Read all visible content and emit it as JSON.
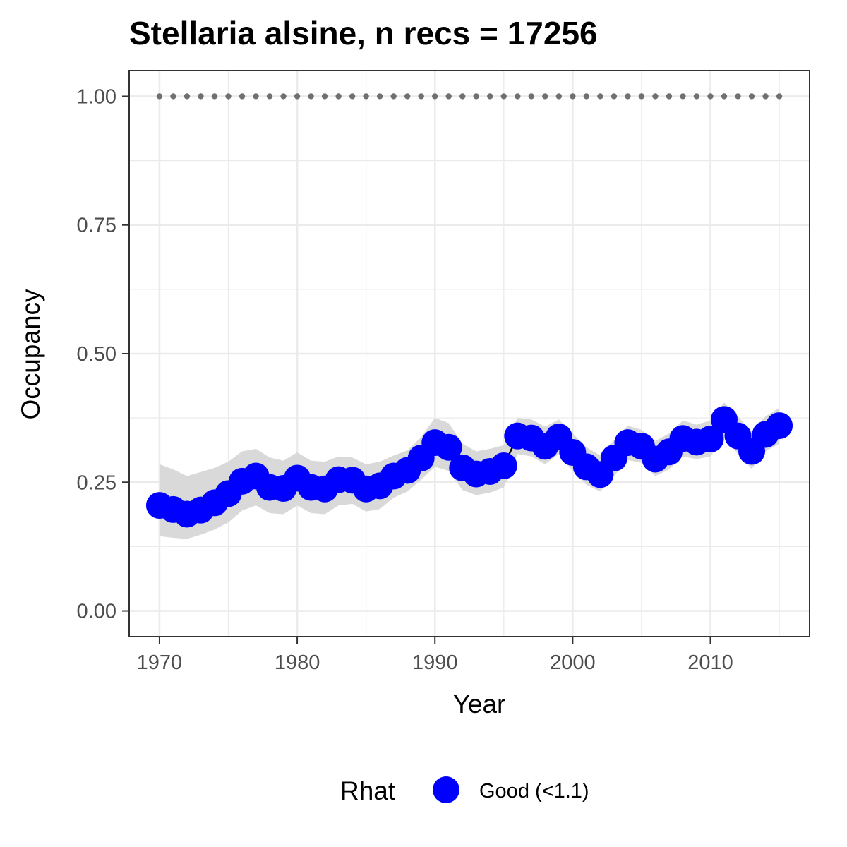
{
  "chart_data": {
    "type": "line",
    "title": "Stellaria alsine, n recs = 17256",
    "xlabel": "Year",
    "ylabel": "Occupancy",
    "xlim": [
      1967.8,
      2017.2
    ],
    "ylim": [
      -0.05,
      1.05
    ],
    "x_ticks": [
      1970,
      1980,
      1990,
      2000,
      2010
    ],
    "x_tick_labels": [
      "1970",
      "1980",
      "1990",
      "2000",
      "2010"
    ],
    "y_ticks": [
      0,
      0.25,
      0.5,
      0.75,
      1
    ],
    "y_tick_labels": [
      "0.00",
      "0.25",
      "0.50",
      "0.75",
      "1.00"
    ],
    "grid": true,
    "legend": {
      "title": "Rhat",
      "position": "bottom",
      "entries": [
        {
          "label": "Good (<1.1)",
          "color": "#0000ff"
        }
      ]
    },
    "colors": {
      "points": "#0000ff",
      "ribbon": "#d9d9d9",
      "reference": "#707070",
      "line": "#000000",
      "grid": "#ebebeb",
      "panel_border": "#333333"
    },
    "x": [
      1970,
      1971,
      1972,
      1973,
      1974,
      1975,
      1976,
      1977,
      1978,
      1979,
      1980,
      1981,
      1982,
      1983,
      1984,
      1985,
      1986,
      1987,
      1988,
      1989,
      1990,
      1991,
      1992,
      1993,
      1994,
      1995,
      1996,
      1997,
      1998,
      1999,
      2000,
      2001,
      2002,
      2003,
      2004,
      2005,
      2006,
      2007,
      2008,
      2009,
      2010,
      2011,
      2012,
      2013,
      2014,
      2015
    ],
    "series": [
      {
        "name": "Good (<1.1)",
        "values": [
          0.205,
          0.197,
          0.188,
          0.196,
          0.21,
          0.228,
          0.252,
          0.262,
          0.24,
          0.238,
          0.258,
          0.24,
          0.237,
          0.255,
          0.254,
          0.237,
          0.243,
          0.262,
          0.273,
          0.297,
          0.327,
          0.318,
          0.278,
          0.266,
          0.271,
          0.282,
          0.34,
          0.336,
          0.32,
          0.338,
          0.308,
          0.28,
          0.265,
          0.297,
          0.327,
          0.32,
          0.295,
          0.309,
          0.335,
          0.328,
          0.334,
          0.372,
          0.34,
          0.31,
          0.343,
          0.36
        ]
      }
    ],
    "ribbon": {
      "upper": [
        0.285,
        0.275,
        0.262,
        0.27,
        0.278,
        0.29,
        0.31,
        0.315,
        0.298,
        0.292,
        0.308,
        0.292,
        0.29,
        0.3,
        0.298,
        0.285,
        0.29,
        0.302,
        0.312,
        0.338,
        0.375,
        0.365,
        0.325,
        0.31,
        0.315,
        0.322,
        0.375,
        0.372,
        0.358,
        0.372,
        0.345,
        0.318,
        0.302,
        0.332,
        0.36,
        0.352,
        0.33,
        0.345,
        0.37,
        0.362,
        0.37,
        0.405,
        0.378,
        0.348,
        0.378,
        0.395
      ],
      "lower": [
        0.145,
        0.142,
        0.14,
        0.148,
        0.158,
        0.172,
        0.195,
        0.205,
        0.19,
        0.188,
        0.205,
        0.19,
        0.188,
        0.205,
        0.208,
        0.193,
        0.198,
        0.22,
        0.232,
        0.255,
        0.28,
        0.272,
        0.235,
        0.225,
        0.23,
        0.24,
        0.305,
        0.3,
        0.285,
        0.305,
        0.272,
        0.245,
        0.232,
        0.262,
        0.293,
        0.288,
        0.262,
        0.275,
        0.3,
        0.295,
        0.3,
        0.338,
        0.305,
        0.276,
        0.31,
        0.325
      ]
    },
    "reference_line": {
      "y": 1.0,
      "style": "dotted"
    }
  }
}
